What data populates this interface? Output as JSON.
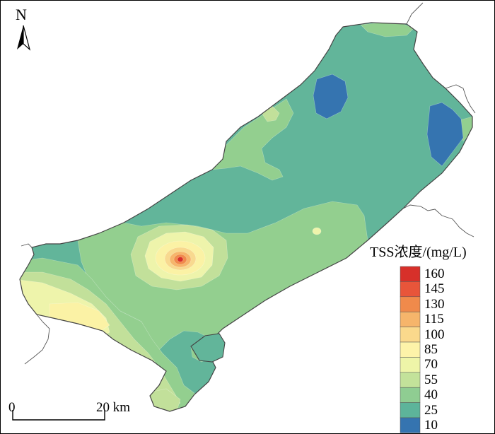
{
  "north": {
    "label": "N"
  },
  "legend": {
    "title": "TSS浓度/(mg/L)",
    "levels": [
      {
        "label": "160",
        "color": "#d7302a"
      },
      {
        "label": "145",
        "color": "#e8553a"
      },
      {
        "label": "130",
        "color": "#f08a4b"
      },
      {
        "label": "115",
        "color": "#f6b56b"
      },
      {
        "label": "100",
        "color": "#fad98c"
      },
      {
        "label": "85",
        "color": "#fdf3a9"
      },
      {
        "label": "70",
        "color": "#eef5a8"
      },
      {
        "label": "55",
        "color": "#c3e29a"
      },
      {
        "label": "40",
        "color": "#8fcd92"
      },
      {
        "label": "25",
        "color": "#5db49a"
      },
      {
        "label": "10",
        "color": "#3574b0"
      }
    ]
  },
  "scalebar": {
    "start": "0",
    "end": "20 km"
  },
  "colors": {
    "c10": "#3574b0",
    "c25": "#62b59a",
    "c40": "#93cf8f",
    "c55": "#c2e09a",
    "c70": "#eef4ab",
    "c85": "#fbf2a5",
    "c100": "#f8d98f",
    "c115": "#f6b56b",
    "c130": "#f08a4b",
    "c145": "#e8553a",
    "c160": "#d7302a"
  }
}
